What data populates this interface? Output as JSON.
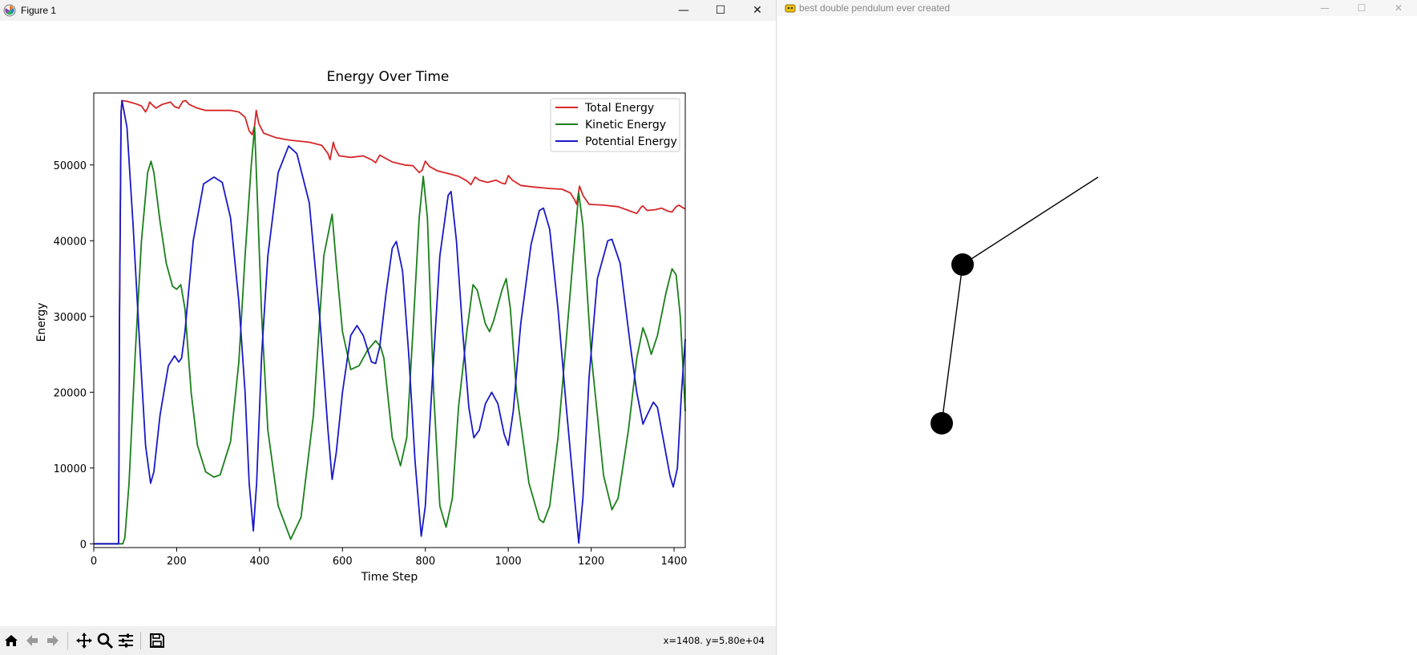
{
  "figure_window": {
    "title": "Figure 1",
    "controls": {
      "minimize": "—",
      "maximize": "☐",
      "close": "✕"
    },
    "toolbar": {
      "buttons": [
        "home-icon",
        "back-icon",
        "forward-icon",
        "pan-icon",
        "zoom-icon",
        "configure-icon",
        "save-icon"
      ],
      "coords_text": "x=1408. y=5.80e+04"
    }
  },
  "pendulum_window": {
    "title": "best double pendulum ever created",
    "controls": {
      "minimize": "—",
      "maximize": "☐",
      "close": "✕"
    }
  },
  "chart_data": {
    "type": "line",
    "title": "Energy Over Time",
    "xlabel": "Time Step",
    "ylabel": "Energy",
    "xlim": [
      0,
      1427
    ],
    "ylim": [
      -500,
      59500
    ],
    "xticks": [
      0,
      200,
      400,
      600,
      800,
      1000,
      1200,
      1400
    ],
    "yticks": [
      0,
      10000,
      20000,
      30000,
      40000,
      50000
    ],
    "legend_position": "top-right",
    "grid": false,
    "series": [
      {
        "name": "Total Energy",
        "color": "#d62728",
        "points": [
          [
            0,
            0
          ],
          [
            60,
            0
          ],
          [
            62,
            30000
          ],
          [
            66,
            57000
          ],
          [
            68,
            58500
          ],
          [
            80,
            58400
          ],
          [
            100,
            58100
          ],
          [
            115,
            57800
          ],
          [
            125,
            57000
          ],
          [
            130,
            57500
          ],
          [
            135,
            58300
          ],
          [
            140,
            58000
          ],
          [
            150,
            57500
          ],
          [
            165,
            58000
          ],
          [
            185,
            58300
          ],
          [
            195,
            57700
          ],
          [
            205,
            57500
          ],
          [
            215,
            58400
          ],
          [
            222,
            58500
          ],
          [
            230,
            58000
          ],
          [
            250,
            57500
          ],
          [
            270,
            57200
          ],
          [
            300,
            57200
          ],
          [
            330,
            57200
          ],
          [
            350,
            57000
          ],
          [
            365,
            56300
          ],
          [
            375,
            54500
          ],
          [
            382,
            54000
          ],
          [
            388,
            55200
          ],
          [
            392,
            57200
          ],
          [
            398,
            55500
          ],
          [
            410,
            54200
          ],
          [
            440,
            53600
          ],
          [
            470,
            53300
          ],
          [
            520,
            53000
          ],
          [
            550,
            52600
          ],
          [
            565,
            51500
          ],
          [
            570,
            50700
          ],
          [
            578,
            53000
          ],
          [
            582,
            52200
          ],
          [
            592,
            51200
          ],
          [
            620,
            51000
          ],
          [
            650,
            51200
          ],
          [
            670,
            50700
          ],
          [
            680,
            50300
          ],
          [
            690,
            51300
          ],
          [
            700,
            51000
          ],
          [
            720,
            50400
          ],
          [
            750,
            50000
          ],
          [
            770,
            49900
          ],
          [
            785,
            49000
          ],
          [
            792,
            49300
          ],
          [
            800,
            50500
          ],
          [
            810,
            49800
          ],
          [
            830,
            49200
          ],
          [
            860,
            48800
          ],
          [
            880,
            48500
          ],
          [
            900,
            47900
          ],
          [
            910,
            47400
          ],
          [
            920,
            48400
          ],
          [
            930,
            48000
          ],
          [
            950,
            47700
          ],
          [
            970,
            48000
          ],
          [
            985,
            47600
          ],
          [
            993,
            47500
          ],
          [
            1000,
            48600
          ],
          [
            1010,
            48000
          ],
          [
            1030,
            47300
          ],
          [
            1060,
            47100
          ],
          [
            1100,
            46900
          ],
          [
            1130,
            46800
          ],
          [
            1150,
            46300
          ],
          [
            1160,
            45400
          ],
          [
            1165,
            44800
          ],
          [
            1172,
            47200
          ],
          [
            1180,
            46000
          ],
          [
            1195,
            44800
          ],
          [
            1230,
            44700
          ],
          [
            1265,
            44500
          ],
          [
            1290,
            44000
          ],
          [
            1310,
            43600
          ],
          [
            1320,
            44400
          ],
          [
            1325,
            44600
          ],
          [
            1335,
            44000
          ],
          [
            1355,
            44100
          ],
          [
            1370,
            44300
          ],
          [
            1385,
            43900
          ],
          [
            1395,
            43800
          ],
          [
            1405,
            44500
          ],
          [
            1412,
            44700
          ],
          [
            1420,
            44400
          ],
          [
            1427,
            44200
          ]
        ]
      },
      {
        "name": "Kinetic Energy",
        "color": "#1a7f1a",
        "points": [
          [
            0,
            0
          ],
          [
            60,
            0
          ],
          [
            70,
            0
          ],
          [
            75,
            800
          ],
          [
            85,
            8000
          ],
          [
            100,
            25000
          ],
          [
            115,
            40000
          ],
          [
            130,
            49000
          ],
          [
            138,
            50500
          ],
          [
            145,
            49000
          ],
          [
            160,
            42500
          ],
          [
            175,
            37000
          ],
          [
            190,
            34000
          ],
          [
            200,
            33600
          ],
          [
            210,
            34200
          ],
          [
            220,
            31000
          ],
          [
            235,
            20000
          ],
          [
            250,
            13000
          ],
          [
            270,
            9500
          ],
          [
            290,
            8800
          ],
          [
            305,
            9100
          ],
          [
            330,
            13500
          ],
          [
            350,
            24000
          ],
          [
            365,
            38000
          ],
          [
            380,
            50000
          ],
          [
            388,
            55000
          ],
          [
            395,
            45000
          ],
          [
            405,
            30000
          ],
          [
            420,
            15000
          ],
          [
            445,
            5000
          ],
          [
            475,
            600
          ],
          [
            500,
            3500
          ],
          [
            530,
            17000
          ],
          [
            555,
            38000
          ],
          [
            575,
            43500
          ],
          [
            585,
            37000
          ],
          [
            600,
            28000
          ],
          [
            620,
            23000
          ],
          [
            640,
            23500
          ],
          [
            660,
            25500
          ],
          [
            680,
            26800
          ],
          [
            692,
            26000
          ],
          [
            700,
            24500
          ],
          [
            720,
            14000
          ],
          [
            740,
            10300
          ],
          [
            755,
            14000
          ],
          [
            770,
            28000
          ],
          [
            785,
            43000
          ],
          [
            795,
            48500
          ],
          [
            805,
            43000
          ],
          [
            820,
            20000
          ],
          [
            835,
            5000
          ],
          [
            850,
            2200
          ],
          [
            865,
            6000
          ],
          [
            880,
            18000
          ],
          [
            900,
            28000
          ],
          [
            915,
            34200
          ],
          [
            925,
            33500
          ],
          [
            945,
            29000
          ],
          [
            955,
            28000
          ],
          [
            965,
            29500
          ],
          [
            985,
            33500
          ],
          [
            995,
            35000
          ],
          [
            1005,
            31000
          ],
          [
            1020,
            20000
          ],
          [
            1050,
            8000
          ],
          [
            1075,
            3200
          ],
          [
            1085,
            2800
          ],
          [
            1100,
            5000
          ],
          [
            1120,
            14000
          ],
          [
            1140,
            27000
          ],
          [
            1160,
            40000
          ],
          [
            1170,
            46300
          ],
          [
            1180,
            42000
          ],
          [
            1200,
            25000
          ],
          [
            1230,
            9000
          ],
          [
            1250,
            4500
          ],
          [
            1265,
            6000
          ],
          [
            1290,
            15000
          ],
          [
            1310,
            24500
          ],
          [
            1325,
            28500
          ],
          [
            1335,
            27000
          ],
          [
            1345,
            25000
          ],
          [
            1360,
            27500
          ],
          [
            1380,
            33000
          ],
          [
            1395,
            36300
          ],
          [
            1405,
            35500
          ],
          [
            1415,
            30000
          ],
          [
            1427,
            17500
          ]
        ]
      },
      {
        "name": "Potential Energy",
        "color": "#1818c8",
        "points": [
          [
            0,
            0
          ],
          [
            55,
            0
          ],
          [
            60,
            0
          ],
          [
            62,
            30000
          ],
          [
            66,
            57000
          ],
          [
            68,
            58500
          ],
          [
            80,
            55000
          ],
          [
            95,
            42000
          ],
          [
            110,
            27000
          ],
          [
            125,
            13000
          ],
          [
            137,
            8000
          ],
          [
            145,
            9500
          ],
          [
            160,
            17000
          ],
          [
            180,
            23500
          ],
          [
            195,
            24800
          ],
          [
            205,
            24000
          ],
          [
            212,
            24500
          ],
          [
            220,
            28000
          ],
          [
            240,
            40000
          ],
          [
            265,
            47500
          ],
          [
            290,
            48400
          ],
          [
            310,
            47700
          ],
          [
            330,
            43000
          ],
          [
            350,
            32000
          ],
          [
            365,
            20000
          ],
          [
            375,
            8000
          ],
          [
            385,
            1700
          ],
          [
            393,
            8000
          ],
          [
            405,
            25000
          ],
          [
            420,
            38000
          ],
          [
            445,
            49000
          ],
          [
            470,
            52500
          ],
          [
            490,
            51500
          ],
          [
            520,
            45000
          ],
          [
            545,
            30000
          ],
          [
            565,
            15000
          ],
          [
            575,
            8500
          ],
          [
            585,
            12000
          ],
          [
            600,
            20000
          ],
          [
            620,
            27500
          ],
          [
            635,
            28800
          ],
          [
            650,
            27500
          ],
          [
            670,
            24000
          ],
          [
            680,
            23800
          ],
          [
            690,
            26000
          ],
          [
            705,
            33000
          ],
          [
            720,
            39000
          ],
          [
            730,
            39900
          ],
          [
            745,
            36000
          ],
          [
            760,
            25000
          ],
          [
            775,
            11000
          ],
          [
            790,
            1000
          ],
          [
            800,
            5000
          ],
          [
            815,
            20000
          ],
          [
            835,
            38000
          ],
          [
            855,
            46000
          ],
          [
            862,
            46500
          ],
          [
            875,
            40000
          ],
          [
            890,
            28000
          ],
          [
            905,
            18000
          ],
          [
            917,
            14000
          ],
          [
            930,
            15000
          ],
          [
            945,
            18500
          ],
          [
            960,
            20000
          ],
          [
            975,
            18500
          ],
          [
            990,
            14500
          ],
          [
            1000,
            13000
          ],
          [
            1012,
            17500
          ],
          [
            1030,
            29000
          ],
          [
            1055,
            39500
          ],
          [
            1075,
            44000
          ],
          [
            1085,
            44300
          ],
          [
            1100,
            41500
          ],
          [
            1120,
            31000
          ],
          [
            1140,
            18000
          ],
          [
            1160,
            6000
          ],
          [
            1170,
            100
          ],
          [
            1180,
            6000
          ],
          [
            1195,
            22000
          ],
          [
            1215,
            35000
          ],
          [
            1240,
            40000
          ],
          [
            1250,
            40200
          ],
          [
            1270,
            37000
          ],
          [
            1295,
            26000
          ],
          [
            1310,
            20000
          ],
          [
            1325,
            15800
          ],
          [
            1335,
            17000
          ],
          [
            1350,
            18700
          ],
          [
            1360,
            18000
          ],
          [
            1375,
            13500
          ],
          [
            1390,
            9000
          ],
          [
            1398,
            7500
          ],
          [
            1408,
            10000
          ],
          [
            1418,
            20000
          ],
          [
            1427,
            27000
          ]
        ]
      }
    ]
  }
}
